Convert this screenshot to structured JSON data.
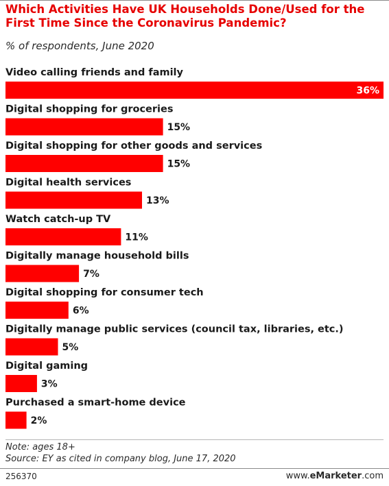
{
  "title": "Which Activities Have UK Households Done/Used for the First Time Since the Coronavirus Pandemic?",
  "subtitle": "% of respondents, June 2020",
  "footer": {
    "note": "Note: ages 18+",
    "source": "Source: EY as cited in company blog, June 17, 2020",
    "chart_id": "256370",
    "brand_prefix": "www.",
    "brand_name": "eMarketer",
    "brand_suffix": ".com"
  },
  "colors": {
    "bar": "#ff0000",
    "title": "#e60000"
  },
  "chart_data": {
    "type": "bar",
    "orientation": "horizontal",
    "title": "Which Activities Have UK Households Done/Used for the First Time Since the Coronavirus Pandemic?",
    "subtitle": "% of respondents, June 2020",
    "unit": "%",
    "categories": [
      "Video calling friends and family",
      "Digital shopping for groceries",
      "Digital shopping for other goods and services",
      "Digital health services",
      "Watch catch-up TV",
      "Digitally manage household bills",
      "Digital shopping for consumer tech",
      "Digitally manage public services (council tax, libraries, etc.)",
      "Digital gaming",
      "Purchased a smart-home device"
    ],
    "values": [
      36,
      15,
      15,
      13,
      11,
      7,
      6,
      5,
      3,
      2
    ],
    "labels": [
      "36%",
      "15%",
      "15%",
      "13%",
      "11%",
      "7%",
      "6%",
      "5%",
      "3%",
      "2%"
    ],
    "xlim": [
      0,
      36
    ],
    "grid": false,
    "legend": "none"
  }
}
